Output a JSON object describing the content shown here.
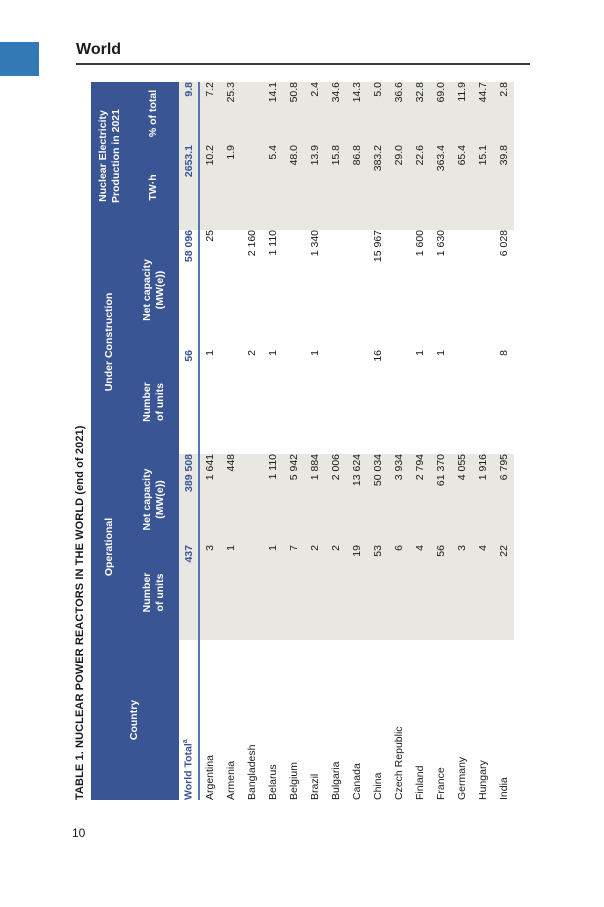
{
  "page": {
    "section_heading": "World",
    "page_number": "10"
  },
  "colors": {
    "header_blue": "#3A5593",
    "accent_blue": "#3279B5",
    "band_gray": "#E8E7E2",
    "total_rule_blue": "#5577AE"
  },
  "table": {
    "title": "TABLE 1. NUCLEAR POWER REACTORS IN THE WORLD (end of 2021)",
    "header": {
      "country": "Country",
      "operational": "Operational",
      "under_construction": "Under Construction",
      "production_l1": "Nuclear Electricity",
      "production_l2": "Production in 2021",
      "units_l1": "Number",
      "units_l2": "of units",
      "capacity_l1": "Net capacity",
      "capacity_l2": "(MW(e))",
      "twh": "TW·h",
      "pct": "% of total"
    },
    "world_total": {
      "label": "World Total",
      "footnote_marker": "a",
      "op_units": "437",
      "op_cap": "389 508",
      "uc_units": "56",
      "uc_cap": "58 096",
      "twh": "2653.1",
      "pct": "9.8"
    },
    "rows": [
      {
        "country": "Argentina",
        "op_units": "3",
        "op_cap": "1 641",
        "uc_units": "1",
        "uc_cap": "25",
        "twh": "10.2",
        "pct": "7.2"
      },
      {
        "country": "Armenia",
        "op_units": "1",
        "op_cap": "448",
        "uc_units": "",
        "uc_cap": "",
        "twh": "1.9",
        "pct": "25.3"
      },
      {
        "country": "Bangladesh",
        "op_units": "",
        "op_cap": "",
        "uc_units": "2",
        "uc_cap": "2 160",
        "twh": "",
        "pct": ""
      },
      {
        "country": "Belarus",
        "op_units": "1",
        "op_cap": "1 110",
        "uc_units": "1",
        "uc_cap": "1 110",
        "twh": "5.4",
        "pct": "14.1"
      },
      {
        "country": "Belgium",
        "op_units": "7",
        "op_cap": "5 942",
        "uc_units": "",
        "uc_cap": "",
        "twh": "48.0",
        "pct": "50.8"
      },
      {
        "country": "Brazil",
        "op_units": "2",
        "op_cap": "1 884",
        "uc_units": "1",
        "uc_cap": "1 340",
        "twh": "13.9",
        "pct": "2.4"
      },
      {
        "country": "Bulgaria",
        "op_units": "2",
        "op_cap": "2 006",
        "uc_units": "",
        "uc_cap": "",
        "twh": "15.8",
        "pct": "34.6"
      },
      {
        "country": "Canada",
        "op_units": "19",
        "op_cap": "13 624",
        "uc_units": "",
        "uc_cap": "",
        "twh": "86.8",
        "pct": "14.3"
      },
      {
        "country": "China",
        "op_units": "53",
        "op_cap": "50 034",
        "uc_units": "16",
        "uc_cap": "15 967",
        "twh": "383.2",
        "pct": "5.0"
      },
      {
        "country": "Czech Republic",
        "op_units": "6",
        "op_cap": "3 934",
        "uc_units": "",
        "uc_cap": "",
        "twh": "29.0",
        "pct": "36.6"
      },
      {
        "country": "Finland",
        "op_units": "4",
        "op_cap": "2 794",
        "uc_units": "1",
        "uc_cap": "1 600",
        "twh": "22.6",
        "pct": "32.8"
      },
      {
        "country": "France",
        "op_units": "56",
        "op_cap": "61 370",
        "uc_units": "1",
        "uc_cap": "1 630",
        "twh": "363.4",
        "pct": "69.0"
      },
      {
        "country": "Germany",
        "op_units": "3",
        "op_cap": "4 055",
        "uc_units": "",
        "uc_cap": "",
        "twh": "65.4",
        "pct": "11.9"
      },
      {
        "country": "Hungary",
        "op_units": "4",
        "op_cap": "1 916",
        "uc_units": "",
        "uc_cap": "",
        "twh": "15.1",
        "pct": "44.7"
      },
      {
        "country": "India",
        "op_units": "22",
        "op_cap": "6 795",
        "uc_units": "8",
        "uc_cap": "6 028",
        "twh": "39.8",
        "pct": "2.8"
      }
    ]
  }
}
